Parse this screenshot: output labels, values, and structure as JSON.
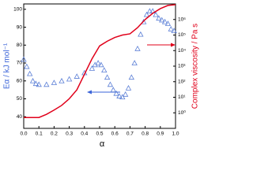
{
  "chart_data": {
    "type": "line",
    "xlabel": "α",
    "ylabel": "Eα / kJ mol⁻¹",
    "y2label": "Complex viscosity / Pa s",
    "xlim": [
      0,
      1
    ],
    "xticks": [
      {
        "value": 0,
        "label": "0.0"
      },
      0.1,
      0.2,
      0.3,
      0.4,
      0.5,
      0.6,
      0.7,
      0.8,
      0.9,
      {
        "value": 1,
        "label": "1.0"
      }
    ],
    "ylim": [
      33.5,
      103
    ],
    "yticks": [
      40,
      50,
      60,
      70,
      80,
      90,
      100
    ],
    "y2lim": [
      0.1,
      10000000
    ],
    "y2log": true,
    "y2ticks": [
      {
        "value": 1,
        "label": "10⁰"
      },
      {
        "value": 10,
        "label": "10¹"
      },
      {
        "value": 100,
        "label": "10²"
      },
      {
        "value": 1000,
        "label": "10³"
      },
      {
        "value": 10000,
        "label": "10⁴"
      },
      {
        "value": 100000,
        "label": "10⁵"
      },
      {
        "value": 1000000,
        "label": "10⁶"
      }
    ],
    "series": [
      {
        "color": "#5b7fd6",
        "marker": "triangle",
        "x": [
          0.0,
          0.02,
          0.04,
          0.06,
          0.08,
          0.1,
          0.15,
          0.2,
          0.25,
          0.3,
          0.35,
          0.4,
          0.45,
          0.47,
          0.49,
          0.51,
          0.53,
          0.55,
          0.57,
          0.59,
          0.61,
          0.63,
          0.65,
          0.67,
          0.69,
          0.71,
          0.73,
          0.75,
          0.77,
          0.79,
          0.81,
          0.83,
          0.85,
          0.87,
          0.89,
          0.91,
          0.93,
          0.95,
          0.97,
          0.99
        ],
        "values": [
          72,
          68,
          64,
          60,
          58.5,
          58,
          58,
          59,
          60,
          61,
          62.5,
          64.5,
          67,
          69,
          70,
          69,
          66,
          62,
          58,
          55,
          53,
          51.5,
          51,
          52.5,
          56,
          62,
          70,
          78,
          86,
          93,
          97,
          99,
          99,
          97,
          95,
          94,
          93,
          92,
          89,
          88
        ]
      },
      {
        "color": "#e0001a",
        "axis": "y2",
        "x": [
          0.0,
          0.05,
          0.1,
          0.15,
          0.2,
          0.25,
          0.3,
          0.35,
          0.4,
          0.45,
          0.5,
          0.55,
          0.6,
          0.65,
          0.7,
          0.75,
          0.8,
          0.85,
          0.9,
          0.95,
          1.0
        ],
        "values": [
          0.5,
          0.5,
          0.5,
          0.8,
          1.5,
          3,
          8,
          30,
          300,
          3000,
          20000,
          40000,
          70000,
          100000,
          120000,
          300000,
          1000000,
          2500000,
          5000000,
          8000000,
          9000000
        ]
      }
    ]
  }
}
